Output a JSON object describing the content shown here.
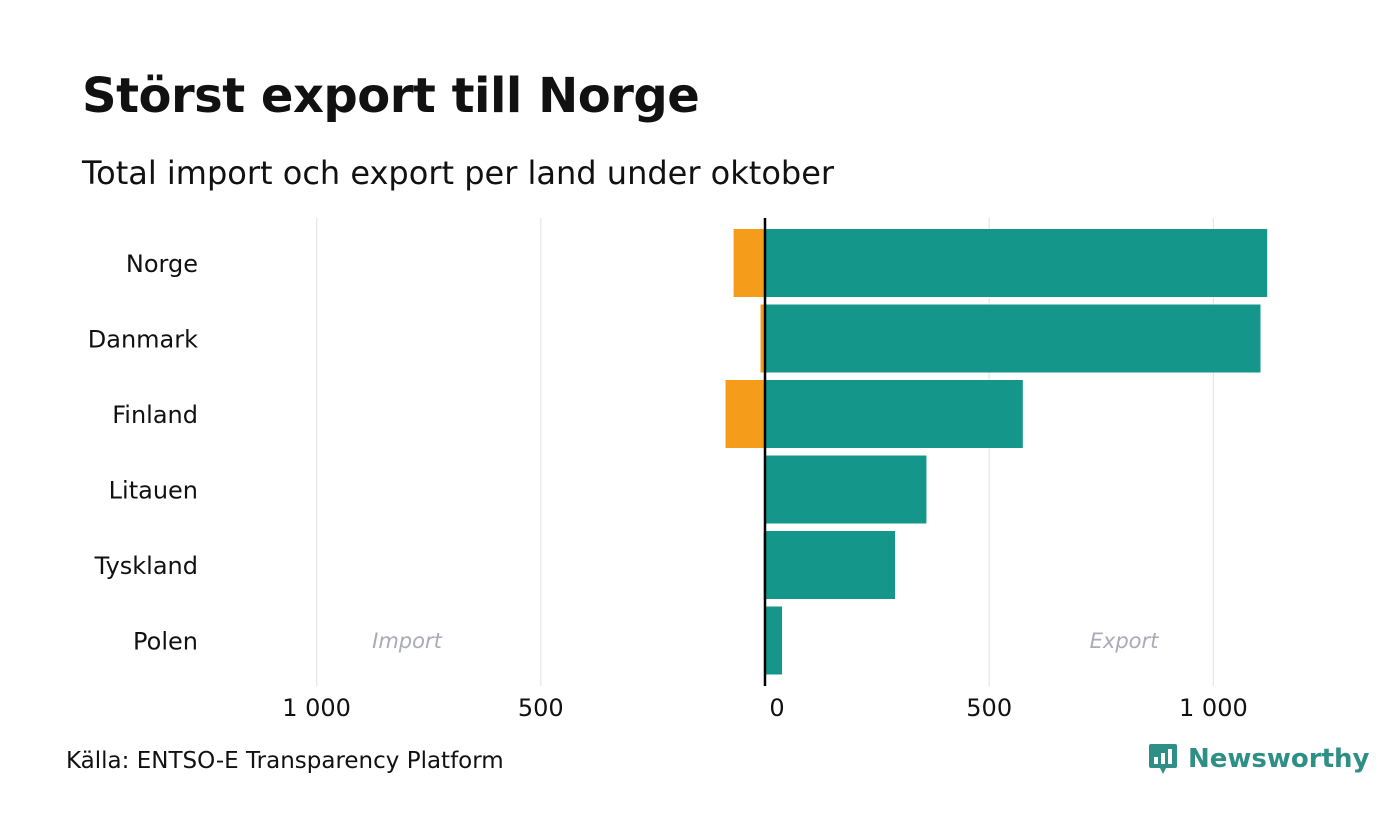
{
  "chart_data": {
    "type": "bar",
    "orientation": "horizontal-diverging",
    "title": "Störst export till Norge",
    "subtitle": "Total import och export per land under oktober",
    "categories": [
      "Norge",
      "Danmark",
      "Finland",
      "Litauen",
      "Tyskland",
      "Polen"
    ],
    "series": [
      {
        "name": "Import",
        "color": "#f59c1a",
        "values": [
          -70,
          -10,
          -88,
          0,
          -3,
          0
        ]
      },
      {
        "name": "Export",
        "color": "#14968a",
        "values": [
          1120,
          1105,
          575,
          360,
          290,
          38
        ]
      }
    ],
    "xlim": [
      -1000,
      1250
    ],
    "xticks": [
      {
        "value": -1000,
        "label": "1 000"
      },
      {
        "value": -500,
        "label": "500"
      },
      {
        "value": 0,
        "label": "0"
      },
      {
        "value": 500,
        "label": "500"
      },
      {
        "value": 1000,
        "label": "1 000"
      }
    ],
    "grid": true,
    "side_labels": {
      "left": "Import",
      "right": "Export"
    }
  },
  "source": "Källa: ENTSO-E Transparency Platform",
  "brand": {
    "name": "Newsworthy",
    "icon": "bar-chart-speech-bubble-icon",
    "color": "#2e8f86"
  }
}
